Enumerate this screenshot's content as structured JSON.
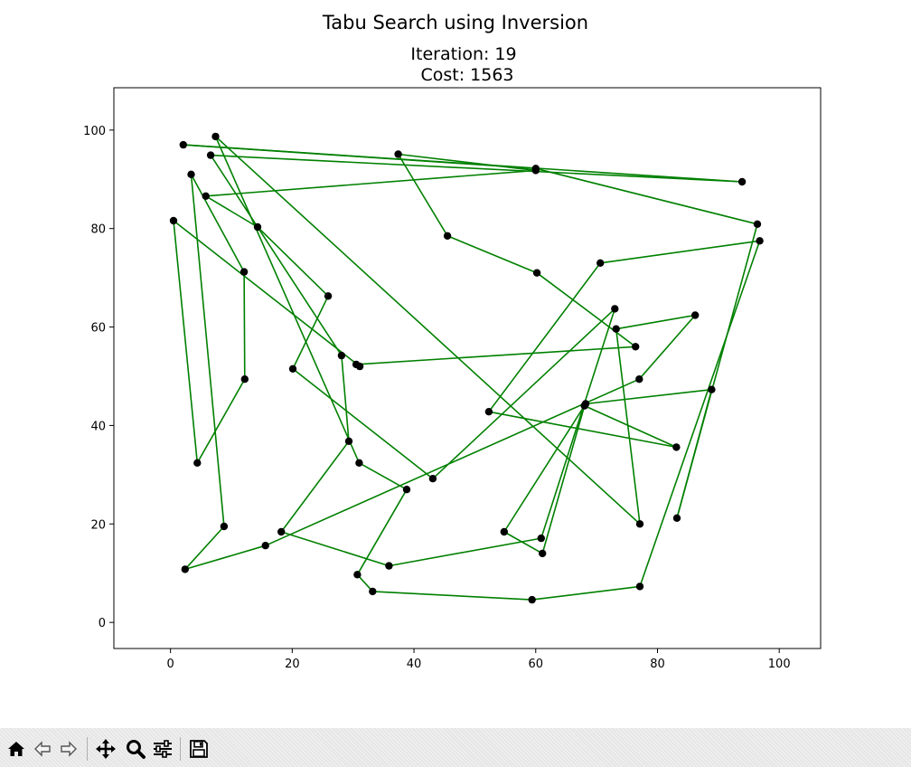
{
  "window": {
    "suptitle": "Tabu Search using Inversion",
    "subtitle_line1": "Iteration: 19",
    "subtitle_line2": "Cost: 1563"
  },
  "toolbar": {
    "buttons": [
      {
        "name": "home-button",
        "icon": "home-icon"
      },
      {
        "name": "back-button",
        "icon": "arrow-left-icon"
      },
      {
        "name": "forward-button",
        "icon": "arrow-right-icon"
      },
      {
        "name": "pan-button",
        "icon": "move-icon"
      },
      {
        "name": "zoom-button",
        "icon": "magnifier-icon"
      },
      {
        "name": "configure-subplots-button",
        "icon": "sliders-icon"
      },
      {
        "name": "save-button",
        "icon": "floppy-disk-icon"
      }
    ]
  },
  "chart_data": {
    "type": "line",
    "title": "Iteration: 19\nCost: 1563",
    "xlim": [
      -9.3,
      106.8
    ],
    "ylim": [
      -5.3,
      108.6
    ],
    "xticks": [
      0,
      20,
      40,
      60,
      80,
      100
    ],
    "yticks": [
      0,
      20,
      40,
      60,
      80,
      100
    ],
    "grid": false,
    "line_color": "#008000",
    "marker_color": "#000000",
    "route": [
      [
        0.5,
        81.6
      ],
      [
        4.4,
        32.4
      ],
      [
        12.2,
        49.4
      ],
      [
        12.1,
        71.2
      ],
      [
        3.4,
        91.0
      ],
      [
        8.8,
        19.5
      ],
      [
        2.4,
        10.8
      ],
      [
        15.6,
        15.6
      ],
      [
        77.0,
        49.4
      ],
      [
        86.2,
        62.4
      ],
      [
        73.2,
        59.6
      ],
      [
        77.1,
        20.0
      ],
      [
        7.4,
        98.7
      ],
      [
        31.0,
        32.4
      ],
      [
        38.8,
        27.0
      ],
      [
        30.7,
        9.7
      ],
      [
        33.2,
        6.3
      ],
      [
        59.4,
        4.6
      ],
      [
        77.1,
        7.3
      ],
      [
        96.8,
        77.5
      ],
      [
        70.6,
        73.0
      ],
      [
        52.3,
        42.8
      ],
      [
        83.1,
        35.6
      ],
      [
        68.0,
        44.0
      ],
      [
        61.1,
        14.0
      ],
      [
        54.8,
        18.4
      ],
      [
        68.2,
        44.4
      ],
      [
        88.9,
        47.3
      ],
      [
        83.2,
        21.2
      ],
      [
        96.4,
        80.9
      ],
      [
        60.0,
        92.2
      ],
      [
        2.1,
        97.0
      ],
      [
        93.9,
        89.5
      ],
      [
        6.6,
        94.9
      ],
      [
        28.1,
        54.2
      ],
      [
        29.3,
        36.8
      ],
      [
        18.2,
        18.4
      ],
      [
        35.9,
        11.5
      ],
      [
        60.9,
        17.1
      ],
      [
        73.0,
        63.7
      ],
      [
        43.1,
        29.2
      ],
      [
        20.1,
        51.5
      ],
      [
        25.9,
        66.3
      ],
      [
        14.3,
        80.3
      ],
      [
        5.8,
        86.6
      ],
      [
        60.0,
        91.8
      ],
      [
        37.4,
        95.1
      ],
      [
        45.5,
        78.5
      ],
      [
        60.2,
        71.0
      ],
      [
        76.4,
        56.0
      ],
      [
        30.5,
        52.4
      ],
      [
        31.1,
        52.0
      ],
      [
        0.5,
        81.6
      ]
    ]
  }
}
